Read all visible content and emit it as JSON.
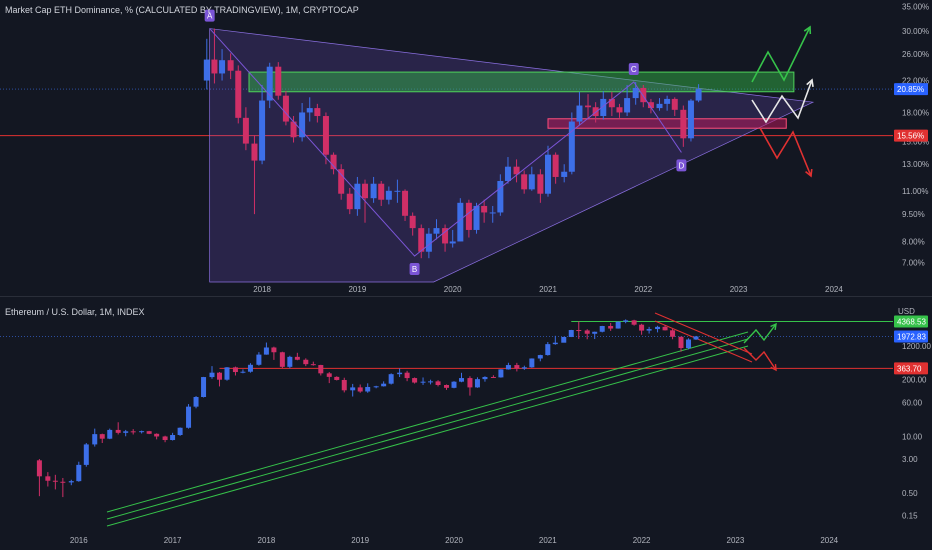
{
  "colors": {
    "background": "#131722",
    "up": "#3d6fe8",
    "down": "#d02f67",
    "green": "#36c24a",
    "red": "#e03131",
    "white": "#e8e8e8",
    "violet": "#7b55d6"
  },
  "chart_data": [
    {
      "type": "candlestick",
      "title": "Market Cap ETH Dominance, % (CALCULATED BY TRADINGVIEW), 1M, CRYPTOCAP",
      "y_scale": "log",
      "ylim": [
        6.2,
        36.5
      ],
      "xlim": [
        2015.25,
        2024.62
      ],
      "y_ticks": [
        "35.00%",
        "30.00%",
        "26.00%",
        "22.00%",
        "18.00%",
        "15.00%",
        "13.00%",
        "11.00%",
        "9.50%",
        "8.00%",
        "7.00%"
      ],
      "y_tick_values": [
        35,
        30,
        26,
        22,
        18,
        15,
        13,
        11,
        9.5,
        8,
        7
      ],
      "x_ticks": [
        "2018",
        "2019",
        "2020",
        "2021",
        "2022",
        "2023",
        "2024"
      ],
      "x_tick_values": [
        2018,
        2019,
        2020,
        2021,
        2022,
        2023,
        2024
      ],
      "price_labels": [
        {
          "text": "20.85%",
          "value": 20.85,
          "kind": "current"
        },
        {
          "text": "15.56%",
          "value": 15.56,
          "kind": "support"
        }
      ],
      "points": [
        {
          "label": "A",
          "x": 2017.45,
          "y": 30.5
        },
        {
          "label": "B",
          "x": 2019.6,
          "y": 7.3
        },
        {
          "label": "C",
          "x": 2021.9,
          "y": 21.8
        },
        {
          "label": "D",
          "x": 2022.4,
          "y": 14.0
        }
      ],
      "zones": [
        {
          "name": "green-zone",
          "y_low": 20.5,
          "y_high": 23.2
        },
        {
          "name": "red-zone",
          "y_low": 16.3,
          "y_high": 17.3
        }
      ],
      "scenarios": [
        {
          "name": "bullish",
          "color": "green"
        },
        {
          "name": "neutral",
          "color": "white"
        },
        {
          "name": "bearish",
          "color": "red"
        }
      ],
      "candles": [
        [
          2017.42,
          22.0,
          25.1,
          28.6,
          20.8
        ],
        [
          2017.5,
          25.1,
          23.0,
          30.5,
          21.6
        ],
        [
          2017.58,
          23.0,
          25.0,
          26.8,
          22.0
        ],
        [
          2017.67,
          25.0,
          23.4,
          26.1,
          22.2
        ],
        [
          2017.75,
          23.4,
          17.4,
          24.2,
          16.8
        ],
        [
          2017.83,
          17.4,
          14.8,
          18.6,
          14.2
        ],
        [
          2017.92,
          14.8,
          13.3,
          15.6,
          9.5
        ],
        [
          2018.0,
          13.3,
          19.4,
          21.4,
          13.0
        ],
        [
          2018.08,
          19.4,
          24.0,
          24.6,
          18.5
        ],
        [
          2018.17,
          24.0,
          20.0,
          24.7,
          19.5
        ],
        [
          2018.25,
          20.0,
          17.0,
          20.6,
          16.6
        ],
        [
          2018.33,
          17.0,
          15.4,
          17.6,
          14.9
        ],
        [
          2018.42,
          15.4,
          18.0,
          19.1,
          15.0
        ],
        [
          2018.5,
          18.0,
          18.5,
          19.8,
          17.0
        ],
        [
          2018.58,
          18.5,
          17.6,
          19.0,
          16.9
        ],
        [
          2018.67,
          17.6,
          13.8,
          18.0,
          13.0
        ],
        [
          2018.75,
          13.8,
          12.6,
          14.0,
          12.2
        ],
        [
          2018.83,
          12.6,
          10.8,
          13.0,
          10.4
        ],
        [
          2018.92,
          10.8,
          9.8,
          11.2,
          9.5
        ],
        [
          2019.0,
          9.8,
          11.5,
          12.0,
          9.4
        ],
        [
          2019.08,
          11.5,
          10.5,
          11.8,
          9.0
        ],
        [
          2019.17,
          10.5,
          11.5,
          12.0,
          10.2
        ],
        [
          2019.25,
          11.5,
          10.4,
          11.7,
          10.0
        ],
        [
          2019.33,
          10.4,
          11.0,
          11.3,
          10.1
        ],
        [
          2019.42,
          11.0,
          11.0,
          11.8,
          10.2
        ],
        [
          2019.5,
          11.0,
          9.4,
          11.1,
          9.1
        ],
        [
          2019.58,
          9.4,
          8.7,
          9.6,
          8.3
        ],
        [
          2019.67,
          8.7,
          7.5,
          8.9,
          7.2
        ],
        [
          2019.75,
          7.5,
          8.4,
          8.7,
          7.2
        ],
        [
          2019.83,
          8.4,
          8.7,
          9.2,
          8.1
        ],
        [
          2019.92,
          8.7,
          7.9,
          8.9,
          7.5
        ],
        [
          2020.0,
          7.9,
          8.0,
          8.6,
          7.7
        ],
        [
          2020.08,
          8.0,
          10.2,
          10.5,
          8.0
        ],
        [
          2020.17,
          10.2,
          8.6,
          10.4,
          8.2
        ],
        [
          2020.25,
          8.6,
          10.0,
          10.2,
          8.4
        ],
        [
          2020.33,
          10.0,
          9.6,
          10.4,
          9.0
        ],
        [
          2020.42,
          9.6,
          9.6,
          10.0,
          9.0
        ],
        [
          2020.5,
          9.6,
          11.7,
          12.2,
          9.4
        ],
        [
          2020.58,
          11.7,
          12.8,
          13.6,
          11.5
        ],
        [
          2020.67,
          12.8,
          12.2,
          13.4,
          11.6
        ],
        [
          2020.75,
          12.2,
          11.1,
          12.5,
          10.8
        ],
        [
          2020.83,
          11.1,
          12.2,
          12.8,
          11.0
        ],
        [
          2020.92,
          12.2,
          10.8,
          12.6,
          10.2
        ],
        [
          2021.0,
          10.8,
          13.8,
          14.6,
          10.6
        ],
        [
          2021.08,
          13.8,
          12.0,
          14.0,
          11.5
        ],
        [
          2021.17,
          12.0,
          12.4,
          13.0,
          11.6
        ],
        [
          2021.25,
          12.4,
          17.0,
          18.0,
          12.2
        ],
        [
          2021.33,
          17.0,
          18.8,
          20.5,
          16.6
        ],
        [
          2021.42,
          18.8,
          18.6,
          20.2,
          17.2
        ],
        [
          2021.5,
          18.6,
          17.6,
          19.2,
          16.9
        ],
        [
          2021.58,
          17.6,
          19.6,
          20.6,
          17.2
        ],
        [
          2021.67,
          19.6,
          18.6,
          20.5,
          17.6
        ],
        [
          2021.75,
          18.6,
          18.0,
          19.0,
          17.4
        ],
        [
          2021.83,
          18.0,
          19.7,
          21.4,
          17.6
        ],
        [
          2021.92,
          19.7,
          21.0,
          21.8,
          18.9
        ],
        [
          2022.0,
          21.0,
          19.2,
          21.4,
          18.6
        ],
        [
          2022.08,
          19.2,
          18.5,
          19.6,
          17.9
        ],
        [
          2022.17,
          18.5,
          19.0,
          19.7,
          18.2
        ],
        [
          2022.25,
          19.0,
          19.6,
          20.0,
          18.2
        ],
        [
          2022.33,
          19.6,
          18.3,
          19.8,
          17.6
        ],
        [
          2022.42,
          18.3,
          15.3,
          18.8,
          14.5
        ],
        [
          2022.5,
          15.3,
          19.4,
          19.6,
          15.0
        ],
        [
          2022.58,
          19.4,
          20.85,
          21.5,
          19.2
        ]
      ]
    },
    {
      "type": "candlestick",
      "title": "Ethereum / U.S. Dollar, 1M, INDEX",
      "y_scale": "log",
      "ylim": [
        0.07,
        11000
      ],
      "xlim": [
        2015.16,
        2024.68
      ],
      "unit_label": "USD",
      "y_ticks": [
        "1200.00",
        "200.00",
        "60.00",
        "10.00",
        "3.00",
        "0.50",
        "0.15"
      ],
      "y_tick_values": [
        1200,
        200,
        60,
        10,
        3,
        0.5,
        0.15
      ],
      "x_ticks": [
        "2016",
        "2017",
        "2018",
        "2019",
        "2020",
        "2021",
        "2022",
        "2023",
        "2024"
      ],
      "x_tick_values": [
        2016,
        2017,
        2018,
        2019,
        2020,
        2021,
        2022,
        2023,
        2024
      ],
      "price_labels": [
        {
          "text": "4368.53",
          "value": 4368.53,
          "kind": "resistance"
        },
        {
          "text": "1972.83",
          "value": 1972.83,
          "kind": "current"
        },
        {
          "text": "363.70",
          "value": 363.7,
          "kind": "support"
        }
      ],
      "scenarios": [
        {
          "name": "bullish",
          "color": "green"
        },
        {
          "name": "bearish",
          "color": "red"
        }
      ],
      "candles": [
        [
          2015.58,
          2.8,
          1.2,
          3.0,
          0.42
        ],
        [
          2015.67,
          1.2,
          0.95,
          1.5,
          0.7
        ],
        [
          2015.75,
          0.95,
          0.9,
          1.3,
          0.6
        ],
        [
          2015.83,
          0.9,
          0.87,
          1.1,
          0.4
        ],
        [
          2015.92,
          0.87,
          0.93,
          1.0,
          0.75
        ],
        [
          2016.0,
          0.93,
          2.2,
          2.6,
          0.9
        ],
        [
          2016.08,
          2.2,
          6.5,
          7.0,
          2.0
        ],
        [
          2016.17,
          6.5,
          11.2,
          15.0,
          5.8
        ],
        [
          2016.25,
          11.2,
          8.8,
          11.5,
          7.0
        ],
        [
          2016.33,
          8.8,
          14.0,
          15.0,
          8.6
        ],
        [
          2016.42,
          14.0,
          12.0,
          21.0,
          11.0
        ],
        [
          2016.5,
          12.0,
          13.0,
          14.0,
          10.0
        ],
        [
          2016.58,
          13.0,
          12.6,
          14.6,
          11.0
        ],
        [
          2016.67,
          12.6,
          13.1,
          13.5,
          11.6
        ],
        [
          2016.75,
          13.1,
          11.4,
          13.3,
          11.2
        ],
        [
          2016.83,
          11.4,
          9.9,
          11.7,
          8.5
        ],
        [
          2016.92,
          9.9,
          8.2,
          10.3,
          7.3
        ],
        [
          2017.0,
          8.2,
          10.7,
          12.0,
          8.0
        ],
        [
          2017.08,
          10.7,
          15.7,
          16.0,
          10.2
        ],
        [
          2017.17,
          15.7,
          48.0,
          55.0,
          15.0
        ],
        [
          2017.25,
          48.0,
          80.0,
          84.0,
          44.0
        ],
        [
          2017.33,
          80.0,
          230.0,
          232.0,
          78.0
        ],
        [
          2017.42,
          230.0,
          290.0,
          410.0,
          210.0
        ],
        [
          2017.5,
          290.0,
          200.0,
          300.0,
          140.0
        ],
        [
          2017.58,
          200.0,
          385.0,
          390.0,
          190.0
        ],
        [
          2017.67,
          385.0,
          300.0,
          400.0,
          250.0
        ],
        [
          2017.75,
          300.0,
          305.0,
          345.0,
          280.0
        ],
        [
          2017.83,
          305.0,
          440.0,
          480.0,
          290.0
        ],
        [
          2017.92,
          440.0,
          755.0,
          860.0,
          420.0
        ],
        [
          2018.0,
          755.0,
          1100.0,
          1430.0,
          750.0
        ],
        [
          2018.08,
          1100.0,
          855.0,
          1150.0,
          570.0
        ],
        [
          2018.17,
          855.0,
          395.0,
          880.0,
          370.0
        ],
        [
          2018.25,
          395.0,
          670.0,
          710.0,
          365.0
        ],
        [
          2018.33,
          670.0,
          575.0,
          830.0,
          560.0
        ],
        [
          2018.42,
          575.0,
          455.0,
          620.0,
          410.0
        ],
        [
          2018.5,
          455.0,
          435.0,
          520.0,
          420.0
        ],
        [
          2018.58,
          435.0,
          280.0,
          440.0,
          250.0
        ],
        [
          2018.67,
          280.0,
          232.0,
          300.0,
          167.0
        ],
        [
          2018.75,
          232.0,
          197.0,
          240.0,
          192.0
        ],
        [
          2018.83,
          197.0,
          114.0,
          222.0,
          102.0
        ],
        [
          2018.92,
          114.0,
          133.0,
          160.0,
          82.0
        ],
        [
          2019.0,
          133.0,
          107.0,
          155.0,
          100.0
        ],
        [
          2019.08,
          107.0,
          136.0,
          165.0,
          100.0
        ],
        [
          2019.17,
          136.0,
          141.0,
          145.0,
          127.0
        ],
        [
          2019.25,
          141.0,
          162.0,
          183.0,
          139.0
        ],
        [
          2019.33,
          162.0,
          268.0,
          280.0,
          155.0
        ],
        [
          2019.42,
          268.0,
          290.0,
          362.0,
          230.0
        ],
        [
          2019.5,
          290.0,
          218.0,
          320.0,
          185.0
        ],
        [
          2019.58,
          218.0,
          172.0,
          225.0,
          163.0
        ],
        [
          2019.67,
          172.0,
          180.0,
          225.0,
          152.0
        ],
        [
          2019.75,
          180.0,
          183.0,
          200.0,
          156.0
        ],
        [
          2019.83,
          183.0,
          151.0,
          195.0,
          140.0
        ],
        [
          2019.92,
          151.0,
          130.0,
          155.0,
          117.0
        ],
        [
          2020.0,
          130.0,
          180.0,
          185.0,
          127.0
        ],
        [
          2020.08,
          180.0,
          218.0,
          288.0,
          175.0
        ],
        [
          2020.17,
          218.0,
          133.0,
          240.0,
          86.0
        ],
        [
          2020.25,
          133.0,
          206.0,
          227.0,
          130.0
        ],
        [
          2020.33,
          206.0,
          231.0,
          240.0,
          180.0
        ],
        [
          2020.42,
          231.0,
          226.0,
          253.0,
          220.0
        ],
        [
          2020.5,
          226.0,
          345.0,
          350.0,
          222.0
        ],
        [
          2020.58,
          345.0,
          434.0,
          490.0,
          340.0
        ],
        [
          2020.67,
          434.0,
          360.0,
          488.0,
          310.0
        ],
        [
          2020.75,
          360.0,
          386.0,
          420.0,
          337.0
        ],
        [
          2020.83,
          386.0,
          614.0,
          620.0,
          375.0
        ],
        [
          2020.92,
          614.0,
          737.0,
          750.0,
          530.0
        ],
        [
          2021.0,
          737.0,
          1314.0,
          1470.0,
          715.0
        ],
        [
          2021.08,
          1314.0,
          1417.0,
          2040.0,
          1270.0
        ],
        [
          2021.17,
          1417.0,
          1919.0,
          1940.0,
          1450.0
        ],
        [
          2021.25,
          1919.0,
          2773.0,
          2800.0,
          1910.0
        ],
        [
          2021.33,
          2773.0,
          2714.0,
          4380.0,
          1730.0
        ],
        [
          2021.42,
          2714.0,
          2275.0,
          2900.0,
          1700.0
        ],
        [
          2021.5,
          2275.0,
          2530.0,
          2550.0,
          1720.0
        ],
        [
          2021.58,
          2530.0,
          3430.0,
          3460.0,
          2450.0
        ],
        [
          2021.67,
          3430.0,
          3000.0,
          4030.0,
          2650.0
        ],
        [
          2021.75,
          3000.0,
          4300.0,
          4380.0,
          2980.0
        ],
        [
          2021.83,
          4300.0,
          4630.0,
          4870.0,
          3970.0
        ],
        [
          2021.92,
          4630.0,
          3680.0,
          4780.0,
          3500.0
        ],
        [
          2022.0,
          3680.0,
          2690.0,
          3860.0,
          2160.0
        ],
        [
          2022.08,
          2690.0,
          2920.0,
          3280.0,
          2300.0
        ],
        [
          2022.17,
          2920.0,
          3280.0,
          3480.0,
          2450.0
        ],
        [
          2022.25,
          3280.0,
          2730.0,
          3580.0,
          2700.0
        ],
        [
          2022.33,
          2730.0,
          1940.0,
          2960.0,
          1700.0
        ],
        [
          2022.42,
          1940.0,
          1070.0,
          1970.0,
          880.0
        ],
        [
          2022.5,
          1070.0,
          1680.0,
          1790.0,
          1000.0
        ],
        [
          2022.58,
          1680.0,
          1972.83,
          2030.0,
          1640.0
        ]
      ]
    }
  ]
}
